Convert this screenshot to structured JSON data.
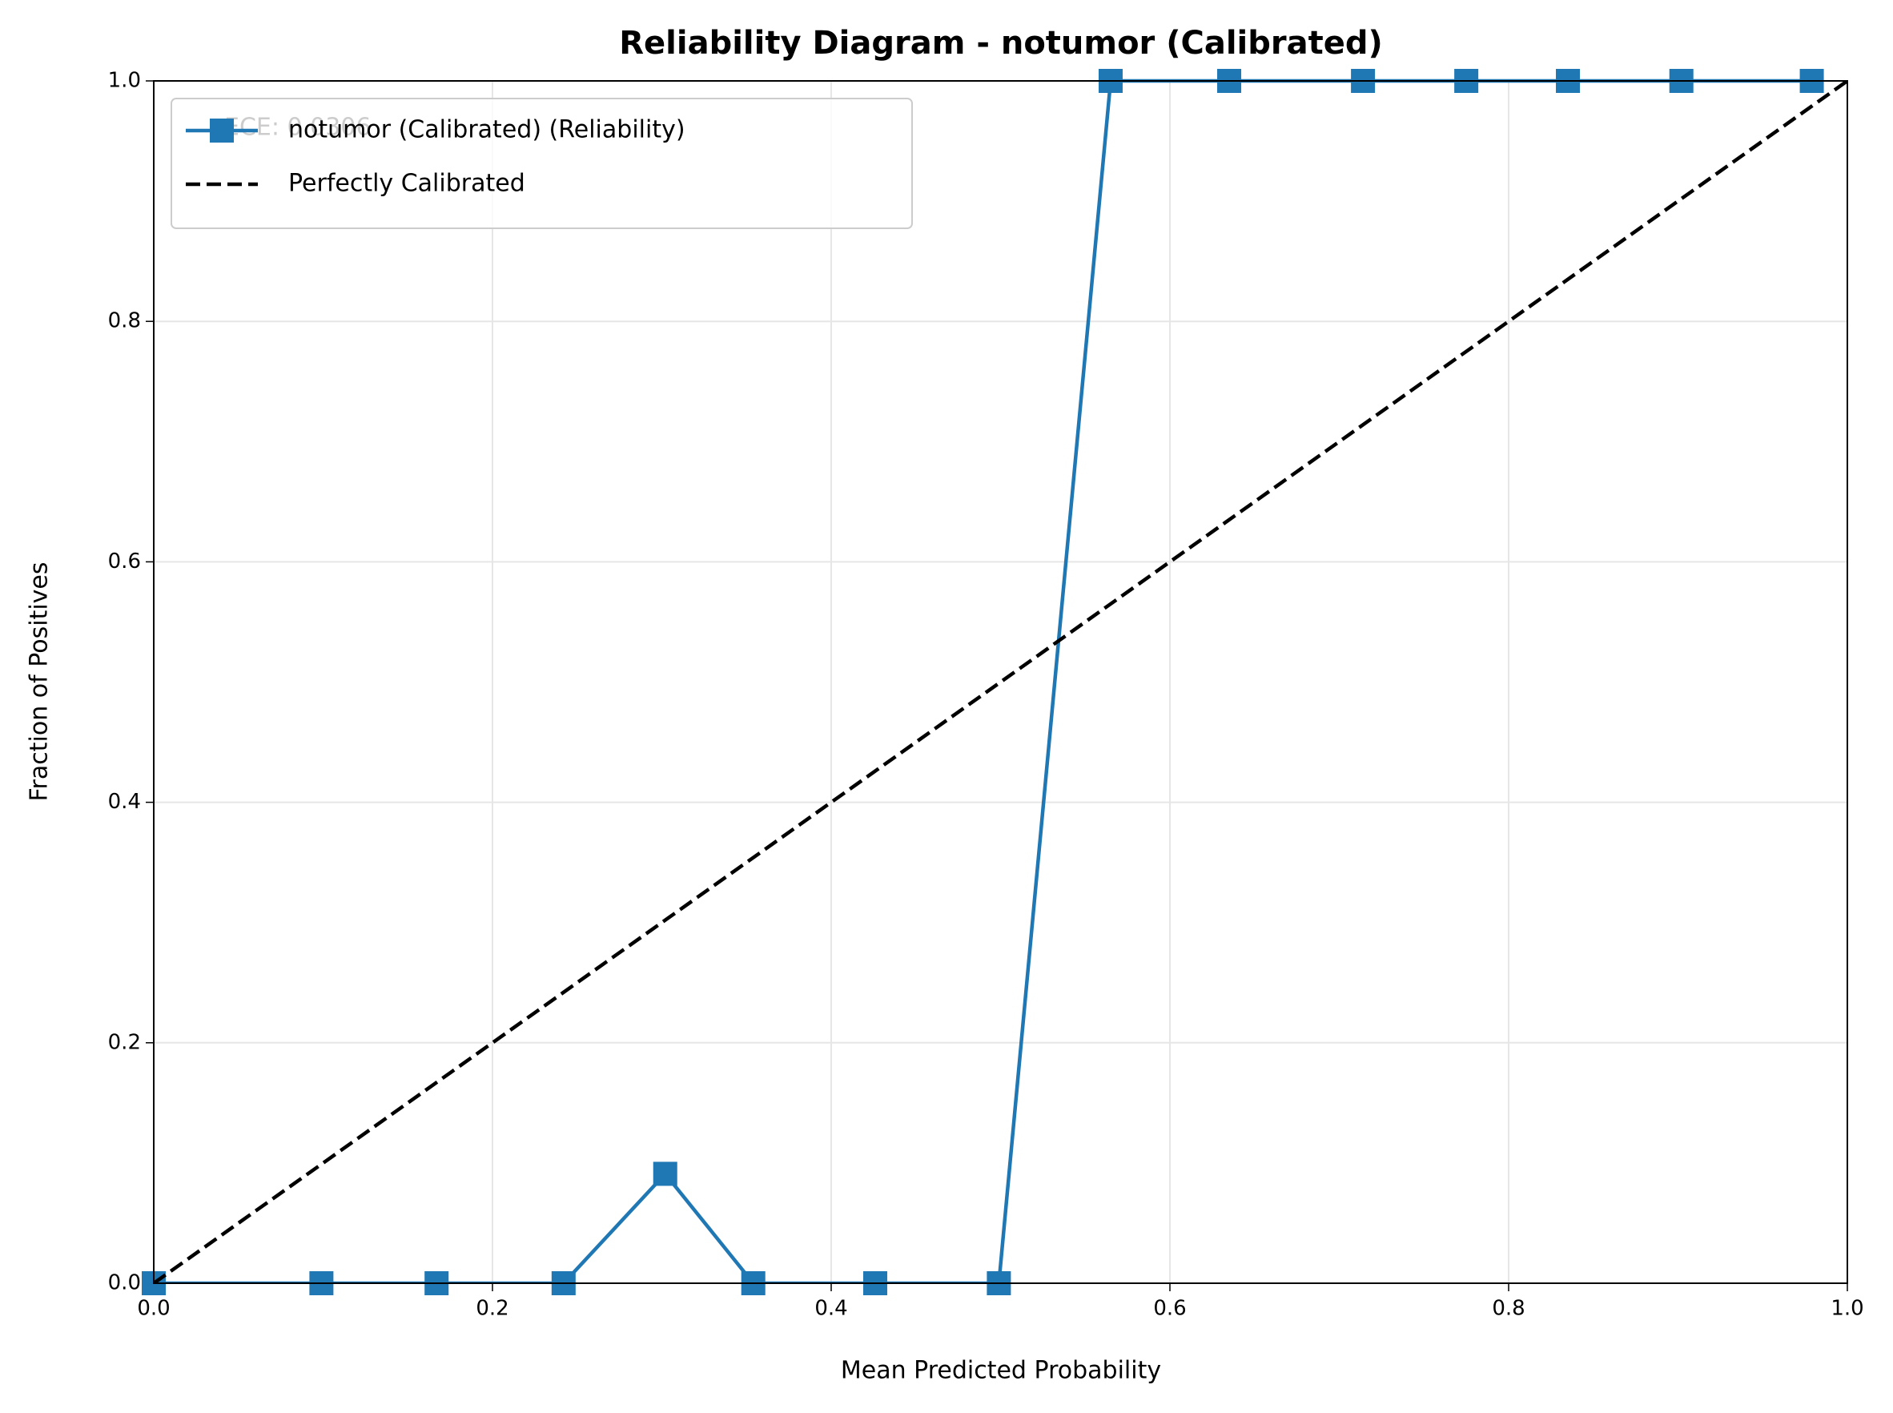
{
  "chart_data": {
    "type": "line",
    "title": "Reliability Diagram - notumor (Calibrated)",
    "x_label": "Mean Predicted Probability",
    "y_label": "Fraction of Positives",
    "annotation": "ECE: 0.0306",
    "xlim": [
      0,
      1
    ],
    "ylim": [
      0,
      1
    ],
    "xticks": [
      {
        "value": 0,
        "label": "0.0"
      },
      {
        "value": 0.2,
        "label": "0.2"
      },
      {
        "value": 0.4,
        "label": "0.4"
      },
      {
        "value": 0.6,
        "label": "0.6"
      },
      {
        "value": 0.8,
        "label": "0.8"
      },
      {
        "value": 1,
        "label": "1.0"
      }
    ],
    "yticks": [
      {
        "value": 0,
        "label": "0.0"
      },
      {
        "value": 0.2,
        "label": "0.2"
      },
      {
        "value": 0.4,
        "label": "0.4"
      },
      {
        "value": 0.6,
        "label": "0.6"
      },
      {
        "value": 0.8,
        "label": "0.8"
      },
      {
        "value": 1,
        "label": "1.0"
      }
    ],
    "grid": true,
    "legend": "upper left",
    "series": [
      {
        "name": "notumor (Calibrated) (Reliability)",
        "color": "#1f77b4",
        "marker": "square",
        "dashed": false,
        "x": [
          0.0,
          0.099,
          0.167,
          0.242,
          0.302,
          0.354,
          0.426,
          0.499,
          0.565,
          0.635,
          0.714,
          0.775,
          0.835,
          0.902,
          0.979
        ],
        "values": [
          0,
          0,
          0,
          0,
          0.091,
          0,
          0,
          0,
          1,
          1,
          1,
          1,
          1,
          1,
          1
        ]
      },
      {
        "name": "Perfectly Calibrated",
        "color": "#000000",
        "marker": "none",
        "dashed": true,
        "x": [
          0,
          1
        ],
        "values": [
          0,
          1
        ]
      }
    ]
  }
}
